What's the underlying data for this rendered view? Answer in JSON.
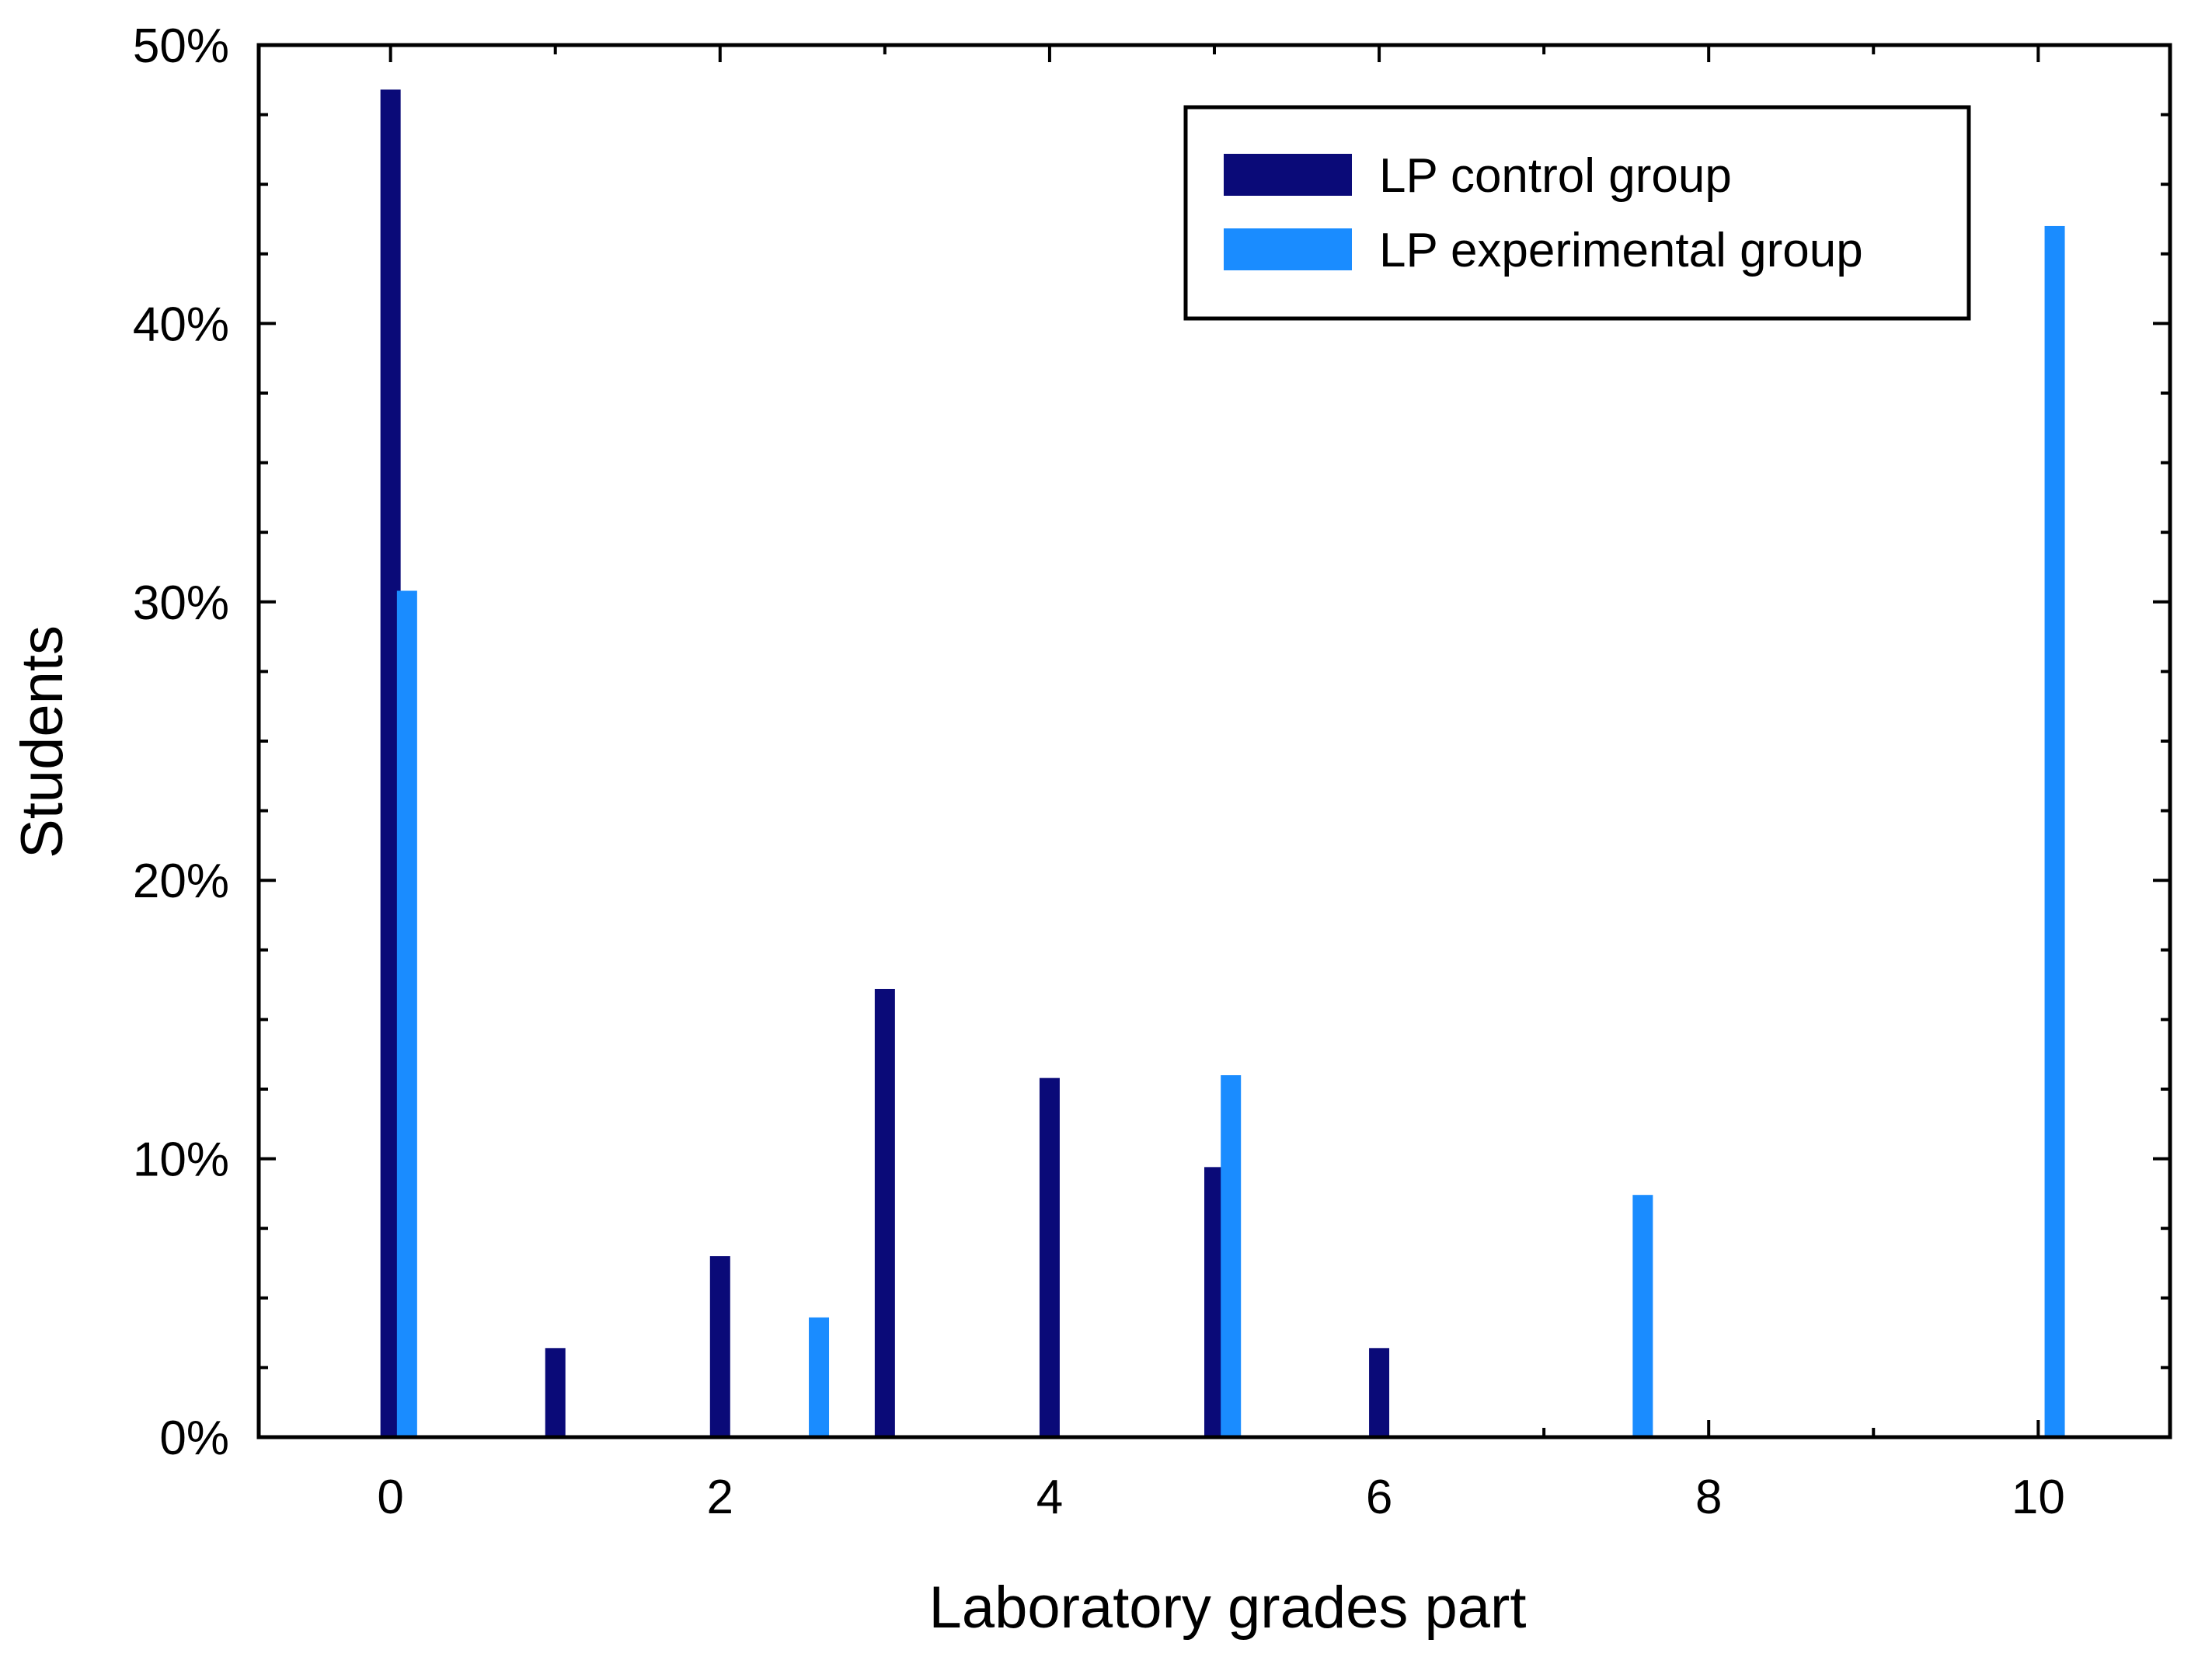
{
  "chart_data": {
    "type": "bar",
    "title": "",
    "xlabel": "Laboratory grades part",
    "ylabel": "Students",
    "xlim": [
      -0.8,
      10.8
    ],
    "ylim": [
      0,
      50
    ],
    "x_ticks": [
      0,
      2,
      4,
      6,
      8,
      10
    ],
    "x_tick_labels": [
      "0",
      "2",
      "4",
      "6",
      "8",
      "10"
    ],
    "y_ticks": [
      0,
      10,
      20,
      30,
      40,
      50
    ],
    "y_tick_labels": [
      "0%",
      "10%",
      "20%",
      "30%",
      "40%",
      "50%"
    ],
    "y_unit": "%",
    "legend_position": "top-right",
    "series": [
      {
        "name": "LP control group",
        "color": "#0a0a78",
        "points": [
          {
            "x": 0,
            "y": 48.4
          },
          {
            "x": 1,
            "y": 3.2
          },
          {
            "x": 2,
            "y": 6.5
          },
          {
            "x": 3,
            "y": 16.1
          },
          {
            "x": 4,
            "y": 12.9
          },
          {
            "x": 5,
            "y": 9.7
          },
          {
            "x": 6,
            "y": 3.2
          }
        ]
      },
      {
        "name": "LP experimental group",
        "color": "#1a8cff",
        "points": [
          {
            "x": 0.1,
            "y": 30.4
          },
          {
            "x": 2.6,
            "y": 4.3
          },
          {
            "x": 5.1,
            "y": 13.0
          },
          {
            "x": 7.6,
            "y": 8.7
          },
          {
            "x": 10.1,
            "y": 43.5
          }
        ]
      }
    ]
  }
}
